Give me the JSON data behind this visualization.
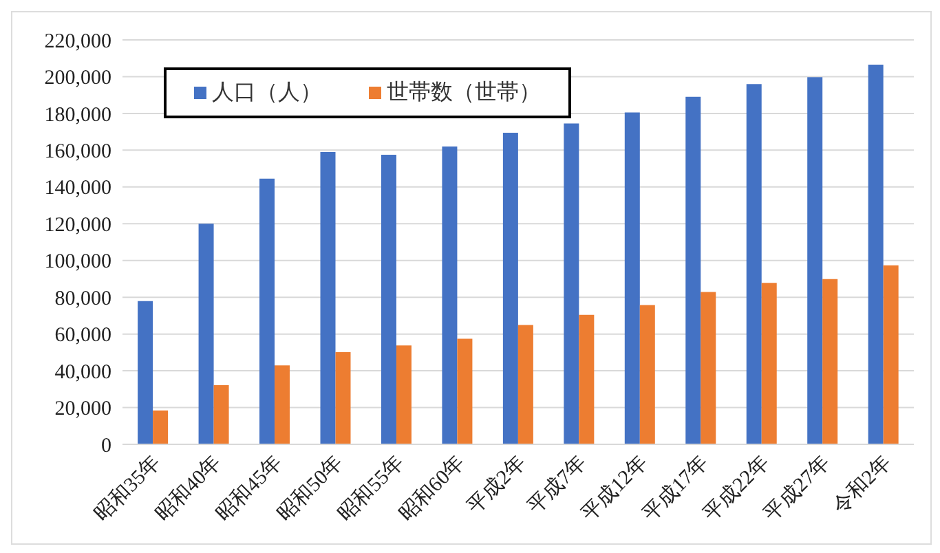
{
  "chart_data": {
    "type": "bar",
    "categories": [
      "昭和35年",
      "昭和40年",
      "昭和45年",
      "昭和50年",
      "昭和55年",
      "昭和60年",
      "平成2年",
      "平成7年",
      "平成12年",
      "平成17年",
      "平成22年",
      "平成27年",
      "令和2年"
    ],
    "series": [
      {
        "name": "人口（人）",
        "color": "#4472c4",
        "values": [
          77900,
          120000,
          144500,
          159000,
          157500,
          162000,
          169500,
          174500,
          180500,
          189000,
          196000,
          199700,
          206500
        ]
      },
      {
        "name": "世帯数（世帯）",
        "color": "#ed7d31",
        "values": [
          18400,
          32200,
          42900,
          50100,
          53800,
          57400,
          64900,
          70400,
          75800,
          82900,
          87800,
          89900,
          97400
        ]
      }
    ],
    "ylim": [
      0,
      220000
    ],
    "yticks": [
      0,
      {
        "value": 20000,
        "label": "20,000"
      },
      {
        "value": 40000,
        "label": "40,000"
      },
      {
        "value": 60000,
        "label": "60,000"
      },
      {
        "value": 80000,
        "label": "80,000"
      },
      {
        "value": 100000,
        "label": "100,000"
      },
      {
        "value": 120000,
        "label": "120,000"
      },
      {
        "value": 140000,
        "label": "140,000"
      },
      {
        "value": 160000,
        "label": "160,000"
      },
      {
        "value": 180000,
        "label": "180,000"
      },
      {
        "value": 200000,
        "label": "200,000"
      },
      {
        "value": 220000,
        "label": "220,000"
      }
    ],
    "grid": "y",
    "legend": "top left"
  }
}
